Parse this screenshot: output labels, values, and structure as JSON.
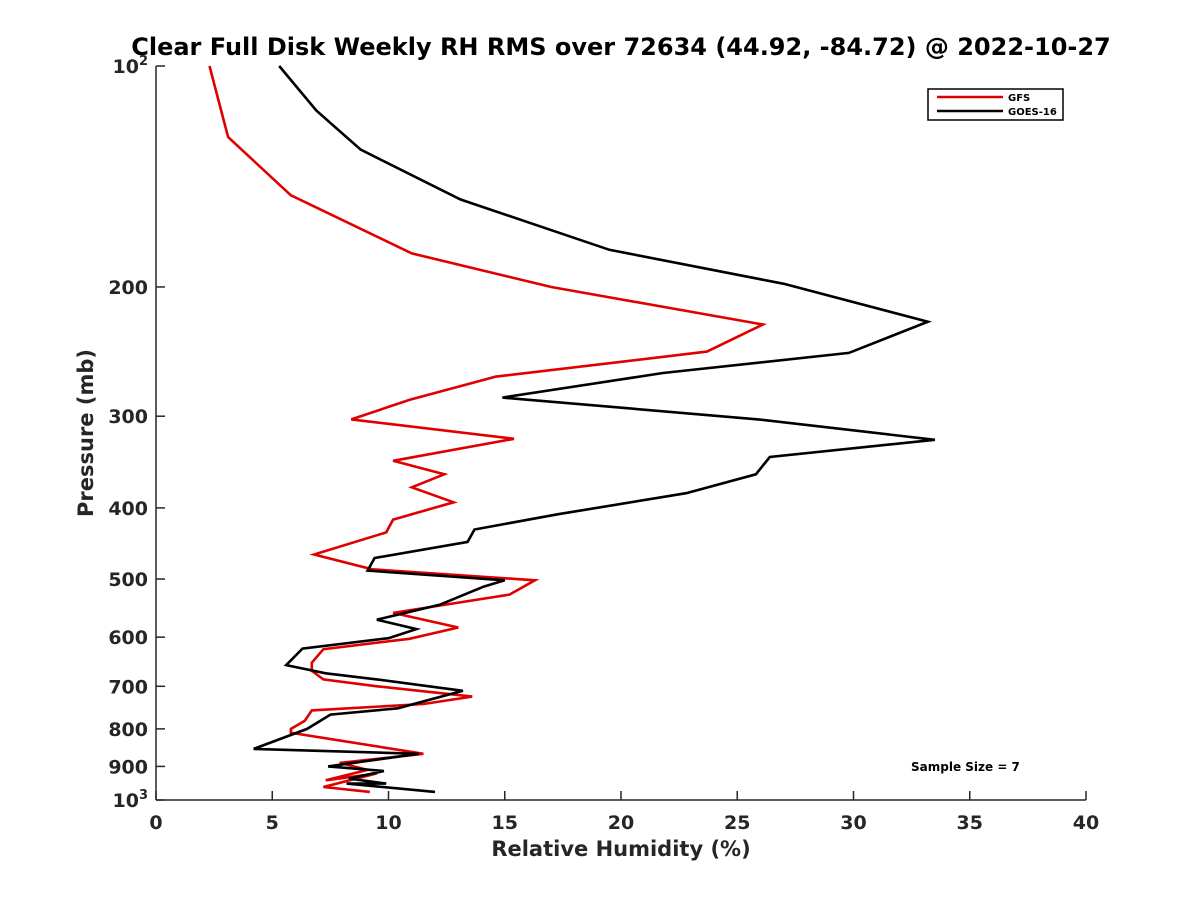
{
  "chart_data": {
    "type": "line",
    "title": "Clear Full Disk Weekly RH RMS over 72634 (44.92, -84.72) @ 2022-10-27",
    "xlabel": "Relative Humidity (%)",
    "ylabel": "Pressure (mb)",
    "xlim": [
      0,
      40
    ],
    "ylim": [
      100,
      1000
    ],
    "yscale": "log",
    "yreversed": true,
    "grid": false,
    "legend_position": "top-right",
    "x_ticks": [
      {
        "value": 0,
        "label": "0"
      },
      {
        "value": 5,
        "label": "5"
      },
      {
        "value": 10,
        "label": "10"
      },
      {
        "value": 15,
        "label": "15"
      },
      {
        "value": 20,
        "label": "20"
      },
      {
        "value": 25,
        "label": "25"
      },
      {
        "value": 30,
        "label": "30"
      },
      {
        "value": 35,
        "label": "35"
      },
      {
        "value": 40,
        "label": "40"
      }
    ],
    "y_ticks": [
      {
        "value": 100,
        "label": "10",
        "sup": "2"
      },
      {
        "value": 200,
        "label": "200",
        "sup": ""
      },
      {
        "value": 300,
        "label": "300",
        "sup": ""
      },
      {
        "value": 400,
        "label": "400",
        "sup": ""
      },
      {
        "value": 500,
        "label": "500",
        "sup": ""
      },
      {
        "value": 600,
        "label": "600",
        "sup": ""
      },
      {
        "value": 700,
        "label": "700",
        "sup": ""
      },
      {
        "value": 800,
        "label": "800",
        "sup": ""
      },
      {
        "value": 900,
        "label": "900",
        "sup": ""
      },
      {
        "value": 1000,
        "label": "10",
        "sup": "3"
      }
    ],
    "annotation": "Sample Size = 7",
    "series": [
      {
        "name": "GFS",
        "color": "#e00000",
        "points": [
          [
            2.3,
            100
          ],
          [
            3.1,
            125
          ],
          [
            5.8,
            150
          ],
          [
            11.0,
            180
          ],
          [
            17.0,
            200
          ],
          [
            26.1,
            225
          ],
          [
            23.7,
            245
          ],
          [
            14.6,
            265
          ],
          [
            10.9,
            285
          ],
          [
            8.4,
            303
          ],
          [
            15.4,
            322
          ],
          [
            10.2,
            345
          ],
          [
            12.4,
            360
          ],
          [
            11.0,
            375
          ],
          [
            12.8,
            393
          ],
          [
            10.2,
            415
          ],
          [
            9.9,
            432
          ],
          [
            6.8,
            463
          ],
          [
            9.3,
            485
          ],
          [
            16.3,
            502
          ],
          [
            15.2,
            525
          ],
          [
            10.2,
            556
          ],
          [
            13.0,
            582
          ],
          [
            10.9,
            603
          ],
          [
            7.2,
            623
          ],
          [
            6.7,
            650
          ],
          [
            6.7,
            667
          ],
          [
            7.2,
            685
          ],
          [
            9.5,
            700
          ],
          [
            13.6,
            723
          ],
          [
            11.5,
            740
          ],
          [
            6.7,
            755
          ],
          [
            6.4,
            780
          ],
          [
            5.8,
            800
          ],
          [
            5.8,
            810
          ],
          [
            11.5,
            865
          ],
          [
            7.9,
            890
          ],
          [
            9.1,
            910
          ],
          [
            7.3,
            940
          ],
          [
            9.5,
            920
          ],
          [
            7.2,
            960
          ],
          [
            9.2,
            975
          ]
        ]
      },
      {
        "name": "GOES-16",
        "color": "#000000",
        "points": [
          [
            5.3,
            100
          ],
          [
            6.9,
            115
          ],
          [
            8.8,
            130
          ],
          [
            13.1,
            152
          ],
          [
            19.5,
            178
          ],
          [
            27.0,
            198
          ],
          [
            33.2,
            223
          ],
          [
            29.8,
            246
          ],
          [
            21.8,
            262
          ],
          [
            14.9,
            283
          ],
          [
            25.9,
            303
          ],
          [
            33.5,
            323
          ],
          [
            26.4,
            341
          ],
          [
            25.8,
            360
          ],
          [
            22.8,
            382
          ],
          [
            17.3,
            408
          ],
          [
            13.7,
            428
          ],
          [
            13.4,
            445
          ],
          [
            9.4,
            468
          ],
          [
            9.1,
            487
          ],
          [
            15.0,
            502
          ],
          [
            14.1,
            512
          ],
          [
            12.2,
            542
          ],
          [
            9.5,
            568
          ],
          [
            11.2,
            585
          ],
          [
            10.0,
            602
          ],
          [
            6.3,
            622
          ],
          [
            5.6,
            655
          ],
          [
            7.3,
            672
          ],
          [
            9.5,
            685
          ],
          [
            13.2,
            710
          ],
          [
            10.4,
            750
          ],
          [
            7.5,
            765
          ],
          [
            6.5,
            800
          ],
          [
            4.2,
            852
          ],
          [
            11.3,
            865
          ],
          [
            7.4,
            900
          ],
          [
            9.8,
            913
          ],
          [
            8.3,
            935
          ],
          [
            9.9,
            950
          ],
          [
            8.2,
            950
          ],
          [
            12.0,
            975
          ]
        ]
      }
    ]
  }
}
